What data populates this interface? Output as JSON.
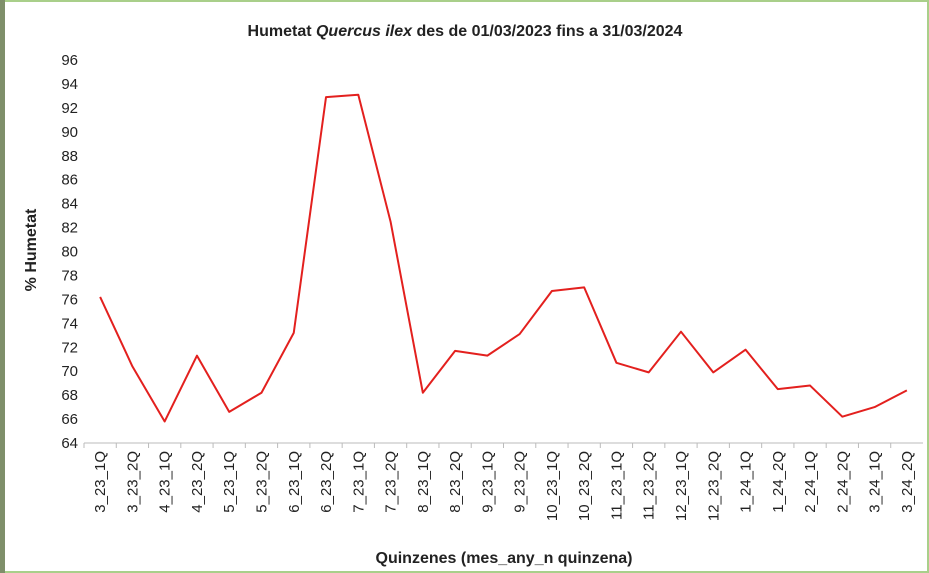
{
  "chart_data": {
    "type": "line",
    "title": [
      "Humetat ",
      "Quercus ilex",
      " des de 01/03/2023 fins a 31/03/2024"
    ],
    "x_label": "Quinzenes (mes_any_n quinzena)",
    "y_label": "% Humetat",
    "categories": [
      "3_23_1Q",
      "3_23_2Q",
      "4_23_1Q",
      "4_23_2Q",
      "5_23_1Q",
      "5_23_2Q",
      "6_23_1Q",
      "6_23_2Q",
      "7_23_1Q",
      "7_23_2Q",
      "8_23_1Q",
      "8_23_2Q",
      "9_23_1Q",
      "9_23_2Q",
      "10_23_1Q",
      "10_23_2Q",
      "11_23_1Q",
      "11_23_2Q",
      "12_23_1Q",
      "12_23_2Q",
      "1_24_1Q",
      "1_24_2Q",
      "2_24_1Q",
      "2_24_2Q",
      "3_24_1Q",
      "3_24_2Q"
    ],
    "values": [
      76.2,
      70.4,
      65.8,
      71.3,
      66.6,
      68.2,
      73.2,
      92.9,
      93.1,
      82.5,
      68.2,
      71.7,
      71.3,
      73.1,
      76.7,
      77.0,
      70.7,
      69.9,
      73.3,
      69.9,
      71.8,
      68.5,
      68.8,
      66.2,
      67.0,
      68.4
    ],
    "color": "#e3201e",
    "ylim": [
      64,
      96
    ],
    "yticks": [
      64,
      66,
      68,
      70,
      72,
      74,
      76,
      78,
      80,
      82,
      84,
      86,
      88,
      90,
      92,
      94,
      96
    ],
    "grid": false
  }
}
